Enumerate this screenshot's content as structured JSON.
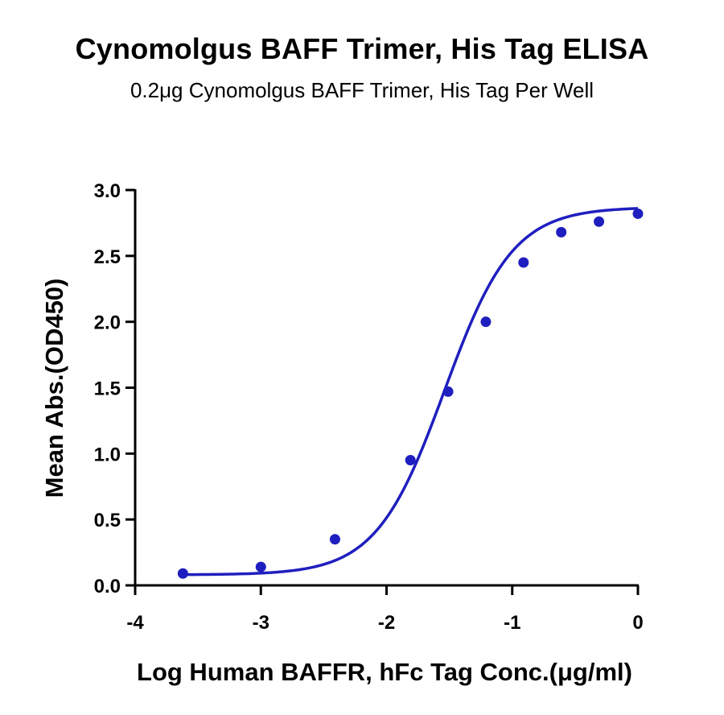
{
  "chart_data": {
    "type": "scatter",
    "title": "Cynomolgus BAFF Trimer, His Tag ELISA",
    "subtitle": "0.2μg Cynomolgus BAFF Trimer, His Tag Per Well",
    "xlabel": "Log Human BAFFR, hFc  Tag Conc.(μg/ml)",
    "ylabel": "Mean Abs.(OD450)",
    "xlim": [
      -4,
      0
    ],
    "ylim": [
      0,
      3
    ],
    "x_ticks": [
      -4,
      -3,
      -2,
      -1,
      0
    ],
    "x_tick_labels": [
      "-4",
      "-3",
      "-2",
      "-1",
      "0"
    ],
    "y_ticks": [
      0,
      0.5,
      1,
      1.5,
      2,
      2.5,
      3
    ],
    "y_tick_labels": [
      "0.0",
      "0.5",
      "1.0",
      "1.5",
      "2.0",
      "2.5",
      "3.0"
    ],
    "grid": false,
    "series": [
      {
        "color": "#1f1fbf",
        "points": [
          {
            "x": -3.62,
            "y": 0.09
          },
          {
            "x": -3.0,
            "y": 0.14
          },
          {
            "x": -2.41,
            "y": 0.35
          },
          {
            "x": -1.81,
            "y": 0.95
          },
          {
            "x": -1.51,
            "y": 1.47
          },
          {
            "x": -1.21,
            "y": 2.0
          },
          {
            "x": -0.91,
            "y": 2.45
          },
          {
            "x": -0.61,
            "y": 2.68
          },
          {
            "x": -0.31,
            "y": 2.76
          },
          {
            "x": 0.0,
            "y": 2.82
          }
        ],
        "fit": "sigmoidal 4PL",
        "fit_params": {
          "bottom": 0.08,
          "top": 2.87,
          "log_ec50": -1.54,
          "hill": 1.6
        }
      }
    ]
  }
}
